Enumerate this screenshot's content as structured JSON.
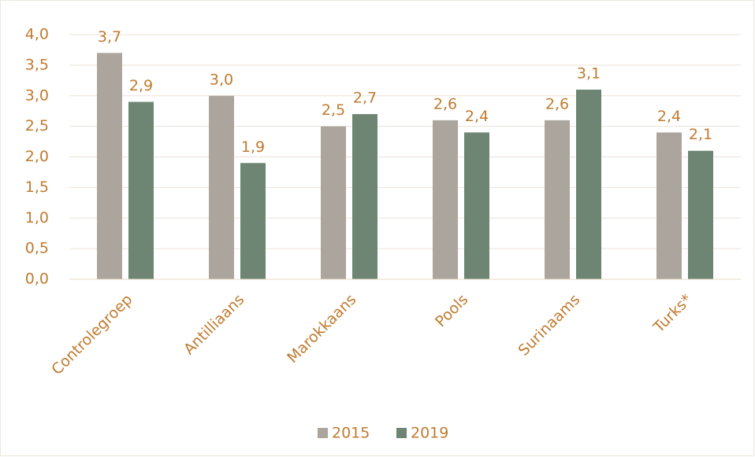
{
  "chart_data": {
    "type": "bar",
    "categories": [
      "Controlegroep",
      "Antilliaans",
      "Marokkaans",
      "Pools",
      "Surinaams",
      "Turks*"
    ],
    "series": [
      {
        "name": "2015",
        "color": "#aca59d",
        "values": [
          3.7,
          3.0,
          2.5,
          2.6,
          2.6,
          2.4
        ],
        "value_labels": [
          "3,7",
          "3,0",
          "2,5",
          "2,6",
          "2,6",
          "2,4"
        ]
      },
      {
        "name": "2019",
        "color": "#6d8572",
        "values": [
          2.9,
          1.9,
          2.7,
          2.4,
          3.1,
          2.1
        ],
        "value_labels": [
          "2,9",
          "1,9",
          "2,7",
          "2,4",
          "3,1",
          "2,1"
        ]
      }
    ],
    "ylim": [
      0,
      4
    ],
    "yticks": [
      {
        "value": 0,
        "label": "0,0"
      },
      {
        "value": 0.5,
        "label": "0,5"
      },
      {
        "value": 1,
        "label": "1,0"
      },
      {
        "value": 1.5,
        "label": "1,5"
      },
      {
        "value": 2,
        "label": "2,0"
      },
      {
        "value": 2.5,
        "label": "2,5"
      },
      {
        "value": 3,
        "label": "3,0"
      },
      {
        "value": 3.5,
        "label": "3,5"
      },
      {
        "value": 4,
        "label": "4,0"
      }
    ],
    "grid": true,
    "legend": "bottom"
  }
}
